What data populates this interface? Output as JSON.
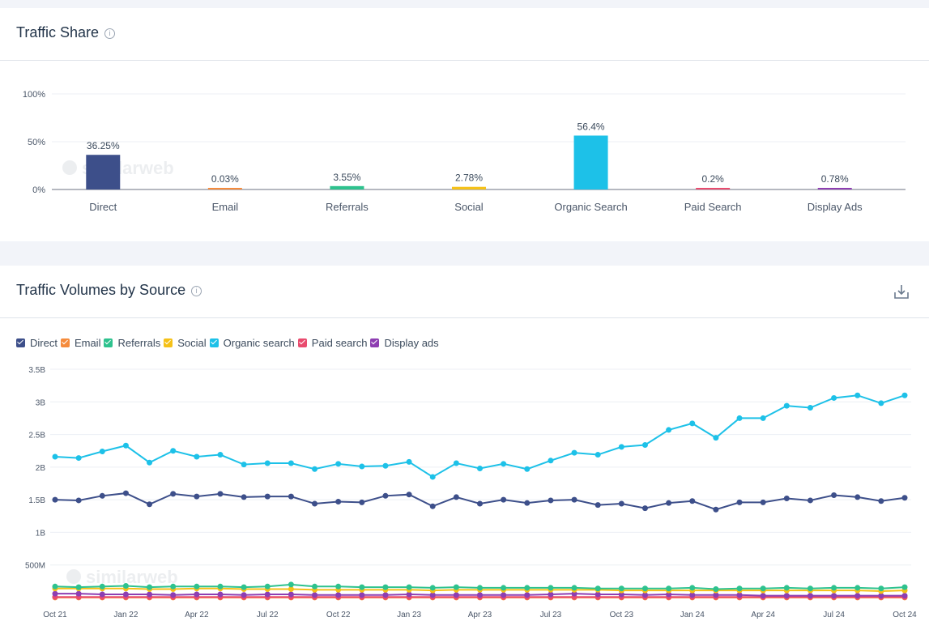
{
  "share_card": {
    "title": "Traffic Share",
    "info_icon": "i"
  },
  "volume_card": {
    "title": "Traffic Volumes by Source",
    "info_icon": "i",
    "download_icon": "download-icon"
  },
  "watermark": "similarweb",
  "chart_data": [
    {
      "type": "bar",
      "categories": [
        "Direct",
        "Email",
        "Referrals",
        "Social",
        "Organic Search",
        "Paid Search",
        "Display Ads"
      ],
      "values": [
        36.25,
        0.03,
        3.55,
        2.78,
        56.4,
        0.2,
        0.78
      ],
      "value_labels": [
        "36.25%",
        "0.03%",
        "3.55%",
        "2.78%",
        "56.4%",
        "0.2%",
        "0.78%"
      ],
      "colors": [
        "#3d4f8a",
        "#f58b3c",
        "#2ec28e",
        "#f5c118",
        "#1dc1e8",
        "#e94b6e",
        "#8e3eb2"
      ],
      "y_ticks": [
        "0%",
        "50%",
        "100%"
      ],
      "ylim": [
        0,
        100
      ]
    },
    {
      "type": "line",
      "x": [
        "Oct 21",
        "Nov 21",
        "Dec 21",
        "Jan 22",
        "Feb 22",
        "Mar 22",
        "Apr 22",
        "May 22",
        "Jun 22",
        "Jul 22",
        "Aug 22",
        "Sep 22",
        "Oct 22",
        "Nov 22",
        "Dec 22",
        "Jan 23",
        "Feb 23",
        "Mar 23",
        "Apr 23",
        "May 23",
        "Jun 23",
        "Jul 23",
        "Aug 23",
        "Sep 23",
        "Oct 23",
        "Nov 23",
        "Dec 23",
        "Jan 24",
        "Feb 24",
        "Mar 24",
        "Apr 24",
        "May 24",
        "Jun 24",
        "Jul 24",
        "Aug 24",
        "Sep 24",
        "Oct 24"
      ],
      "x_tick_labels": [
        "Oct 21",
        "Jan 22",
        "Apr 22",
        "Jul 22",
        "Oct 22",
        "Jan 23",
        "Apr 23",
        "Jul 23",
        "Oct 23",
        "Jan 24",
        "Apr 24",
        "Jul 24",
        "Oct 24"
      ],
      "y_ticks": [
        "500M",
        "1B",
        "1.5B",
        "2B",
        "2.5B",
        "3B",
        "3.5B"
      ],
      "y_tick_values": [
        0.5,
        1,
        1.5,
        2,
        2.5,
        3,
        3.5
      ],
      "ylim": [
        0,
        3.5
      ],
      "y_unit": "B",
      "legend": [
        "Direct",
        "Email",
        "Referrals",
        "Social",
        "Organic search",
        "Paid search",
        "Display ads"
      ],
      "series": [
        {
          "name": "Direct",
          "color": "#3d4f8a",
          "values": [
            1.5,
            1.49,
            1.56,
            1.6,
            1.43,
            1.59,
            1.55,
            1.59,
            1.54,
            1.55,
            1.55,
            1.44,
            1.47,
            1.46,
            1.56,
            1.58,
            1.4,
            1.54,
            1.44,
            1.5,
            1.45,
            1.49,
            1.5,
            1.42,
            1.44,
            1.37,
            1.45,
            1.48,
            1.35,
            1.46,
            1.46,
            1.52,
            1.49,
            1.57,
            1.54,
            1.48,
            1.53
          ]
        },
        {
          "name": "Email",
          "color": "#f58b3c",
          "values": [
            0.002,
            0.002,
            0.002,
            0.002,
            0.002,
            0.002,
            0.002,
            0.002,
            0.002,
            0.002,
            0.002,
            0.002,
            0.002,
            0.002,
            0.002,
            0.002,
            0.002,
            0.002,
            0.002,
            0.002,
            0.002,
            0.002,
            0.002,
            0.002,
            0.002,
            0.002,
            0.002,
            0.002,
            0.002,
            0.002,
            0.002,
            0.002,
            0.002,
            0.002,
            0.002,
            0.002,
            0.002
          ]
        },
        {
          "name": "Referrals",
          "color": "#2ec28e",
          "values": [
            0.17,
            0.16,
            0.17,
            0.18,
            0.16,
            0.17,
            0.17,
            0.17,
            0.16,
            0.17,
            0.2,
            0.17,
            0.17,
            0.16,
            0.16,
            0.16,
            0.15,
            0.16,
            0.15,
            0.15,
            0.15,
            0.15,
            0.15,
            0.14,
            0.14,
            0.14,
            0.14,
            0.15,
            0.13,
            0.14,
            0.14,
            0.15,
            0.14,
            0.15,
            0.15,
            0.14,
            0.16
          ]
        },
        {
          "name": "Social",
          "color": "#f5c118",
          "values": [
            0.14,
            0.14,
            0.14,
            0.14,
            0.13,
            0.13,
            0.14,
            0.14,
            0.13,
            0.13,
            0.13,
            0.12,
            0.12,
            0.12,
            0.12,
            0.12,
            0.11,
            0.12,
            0.12,
            0.12,
            0.12,
            0.12,
            0.12,
            0.12,
            0.11,
            0.11,
            0.11,
            0.11,
            0.11,
            0.11,
            0.11,
            0.11,
            0.11,
            0.11,
            0.11,
            0.1,
            0.11
          ]
        },
        {
          "name": "Organic search",
          "color": "#1dc1e8",
          "values": [
            2.16,
            2.14,
            2.24,
            2.33,
            2.07,
            2.25,
            2.16,
            2.19,
            2.04,
            2.06,
            2.06,
            1.97,
            2.05,
            2.01,
            2.02,
            2.08,
            1.85,
            2.06,
            1.98,
            2.05,
            1.97,
            2.1,
            2.22,
            2.19,
            2.31,
            2.34,
            2.57,
            2.67,
            2.45,
            2.75,
            2.75,
            2.94,
            2.91,
            3.06,
            3.1,
            2.98,
            3.1
          ]
        },
        {
          "name": "Paid search",
          "color": "#e94b6e",
          "values": [
            0.01,
            0.01,
            0.01,
            0.01,
            0.01,
            0.01,
            0.01,
            0.01,
            0.01,
            0.01,
            0.01,
            0.01,
            0.01,
            0.01,
            0.01,
            0.01,
            0.01,
            0.01,
            0.01,
            0.01,
            0.01,
            0.01,
            0.01,
            0.01,
            0.01,
            0.01,
            0.01,
            0.01,
            0.01,
            0.01,
            0.01,
            0.01,
            0.01,
            0.01,
            0.01,
            0.01,
            0.01
          ]
        },
        {
          "name": "Display ads",
          "color": "#8e3eb2",
          "values": [
            0.06,
            0.06,
            0.05,
            0.05,
            0.05,
            0.04,
            0.05,
            0.05,
            0.04,
            0.05,
            0.05,
            0.04,
            0.04,
            0.04,
            0.04,
            0.05,
            0.04,
            0.04,
            0.04,
            0.04,
            0.04,
            0.05,
            0.06,
            0.05,
            0.05,
            0.04,
            0.05,
            0.04,
            0.04,
            0.04,
            0.03,
            0.03,
            0.03,
            0.03,
            0.03,
            0.03,
            0.03
          ]
        }
      ]
    }
  ]
}
